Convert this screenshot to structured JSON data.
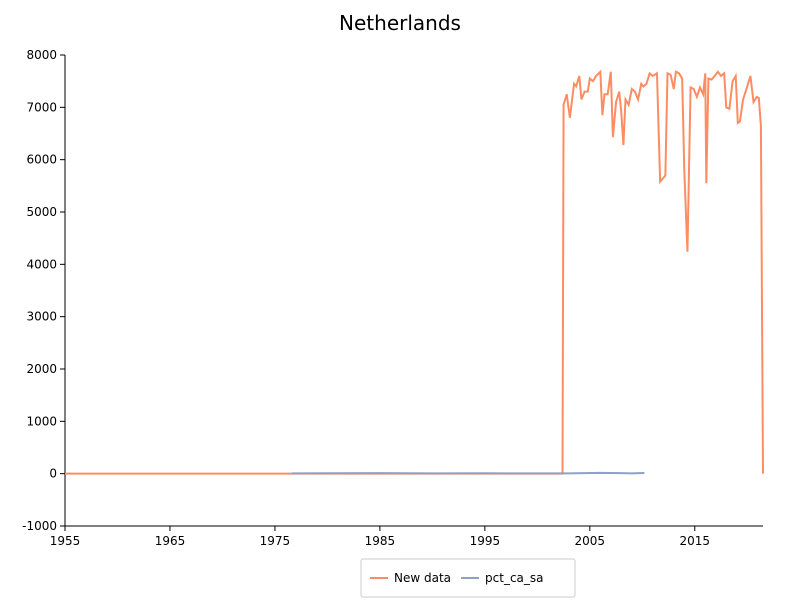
{
  "chart_data": {
    "type": "line",
    "title": "Netherlands",
    "xlim": [
      1955,
      2021.5
    ],
    "xticks": [
      1955,
      1965,
      1975,
      1985,
      1995,
      2005,
      2015
    ],
    "ylim": [
      -1000,
      8000
    ],
    "yticks": [
      -1000,
      0,
      1000,
      2000,
      3000,
      4000,
      5000,
      6000,
      7000,
      8000
    ],
    "legend": "bottom",
    "series": [
      {
        "name": "New data",
        "color": "#fc8d62",
        "x": [
          1955,
          2002.4,
          2002.5,
          2002.8,
          2003.1,
          2003.5,
          2003.7,
          2004.0,
          2004.2,
          2004.5,
          2004.8,
          2005.0,
          2005.3,
          2005.6,
          2006.0,
          2006.2,
          2006.4,
          2006.7,
          2007.0,
          2007.2,
          2007.5,
          2007.8,
          2008.0,
          2008.2,
          2008.4,
          2008.7,
          2009.0,
          2009.3,
          2009.6,
          2009.9,
          2010.1,
          2010.4,
          2010.7,
          2011.0,
          2011.4,
          2011.7,
          2012.0,
          2012.2,
          2012.4,
          2012.7,
          2013.0,
          2013.2,
          2013.5,
          2013.8,
          2014.0,
          2014.3,
          2014.6,
          2014.9,
          2015.2,
          2015.5,
          2015.8,
          2016.0,
          2016.1,
          2016.3,
          2016.6,
          2016.9,
          2017.2,
          2017.5,
          2017.8,
          2018.0,
          2018.3,
          2018.6,
          2018.9,
          2019.1,
          2019.3,
          2019.6,
          2020.0,
          2020.3,
          2020.6,
          2020.9,
          2021.1,
          2021.3,
          2021.5
        ],
        "values": [
          0,
          0,
          7050,
          7250,
          6800,
          7450,
          7400,
          7600,
          7150,
          7300,
          7300,
          7550,
          7500,
          7600,
          7680,
          6850,
          7250,
          7250,
          7680,
          6430,
          7100,
          7300,
          6900,
          6280,
          7150,
          7050,
          7350,
          7300,
          7150,
          7450,
          7400,
          7450,
          7650,
          7600,
          7650,
          5580,
          5650,
          5700,
          7650,
          7620,
          7350,
          7680,
          7650,
          7550,
          5800,
          4240,
          7380,
          7350,
          7200,
          7380,
          7250,
          7650,
          5550,
          7550,
          7530,
          7600,
          7680,
          7600,
          7650,
          7000,
          6970,
          7500,
          7600,
          6700,
          6730,
          7150,
          7400,
          7600,
          7100,
          7200,
          7180,
          6650,
          0
        ]
      },
      {
        "name": "pct_ca_sa",
        "color": "#8da0cb",
        "x": [
          1976.6,
          1980,
          1985,
          1990,
          1995,
          2000,
          2003,
          2006,
          2008,
          2009,
          2010.2
        ],
        "values": [
          5,
          8,
          10,
          6,
          8,
          5,
          5,
          15,
          10,
          5,
          12
        ]
      }
    ]
  }
}
